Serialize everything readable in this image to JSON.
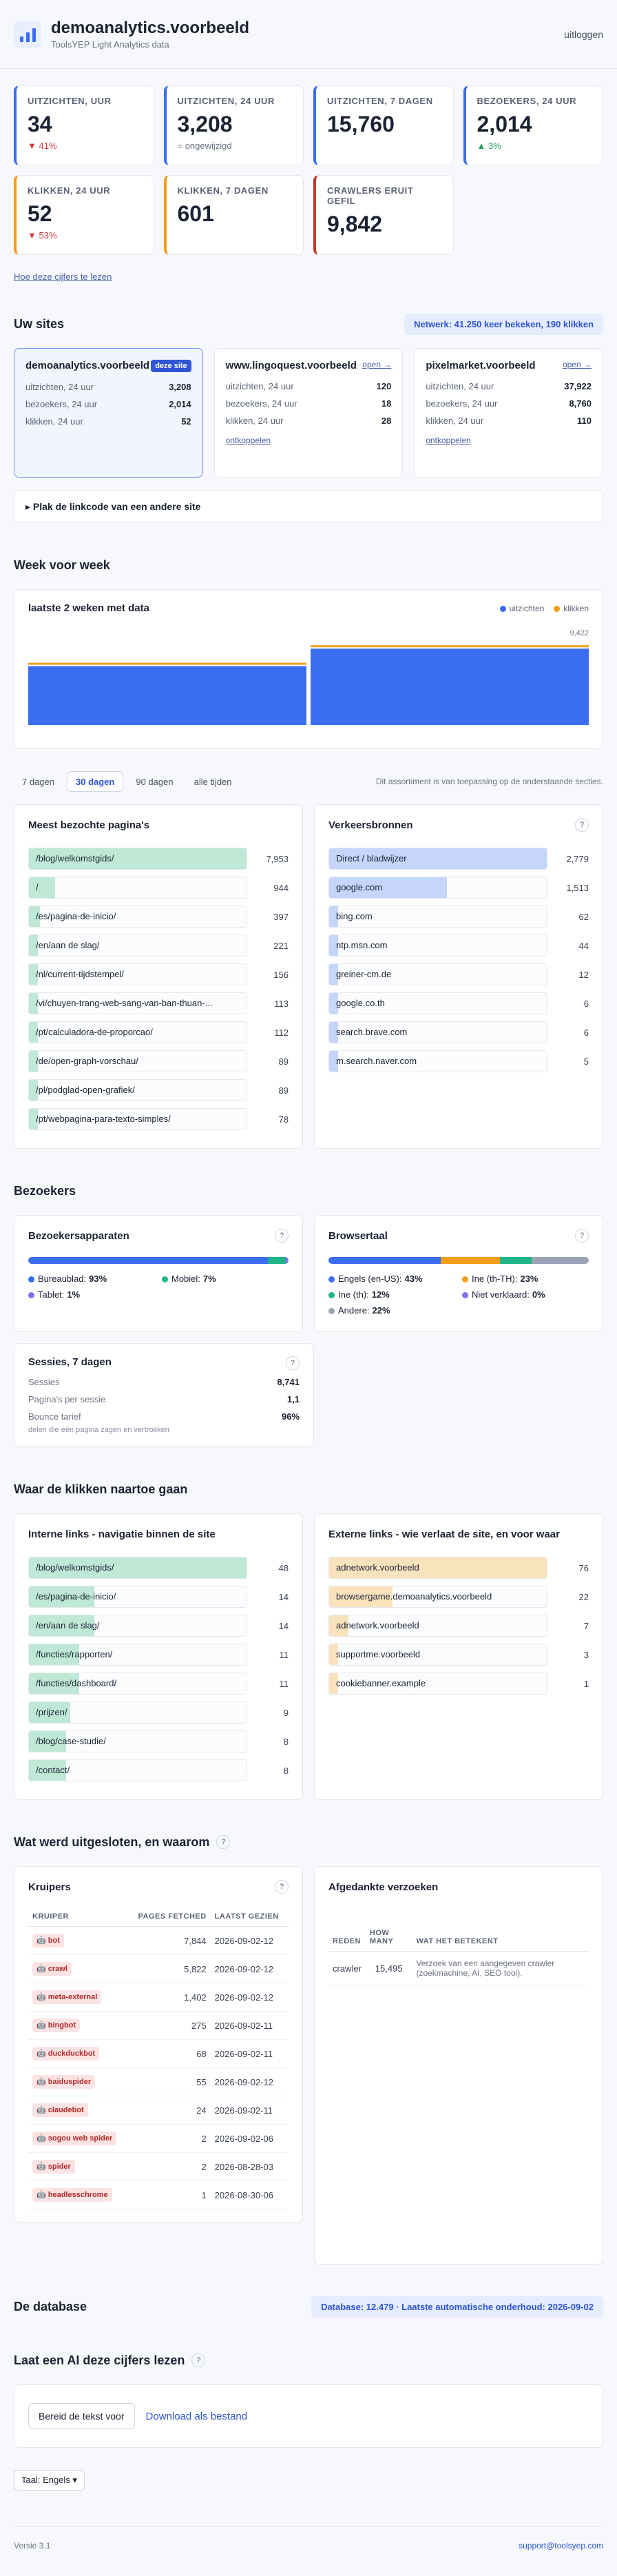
{
  "header": {
    "title": "demoanalytics.voorbeeld",
    "subtitle": "ToolsYEP Light Analytics data",
    "logout": "uitloggen"
  },
  "kpis": [
    {
      "label": "Uitzichten, uur",
      "value": "34",
      "delta": "▼ 41%",
      "trend": "down",
      "accent": "#3b6df0"
    },
    {
      "label": "Uitzichten, 24 uur",
      "value": "3,208",
      "delta": "= ongewijzigd",
      "trend": "flat",
      "accent": "#3b6df0"
    },
    {
      "label": "Uitzichten, 7 dagen",
      "value": "15,760",
      "delta": "",
      "trend": "none",
      "accent": "#3b6df0"
    },
    {
      "label": "Bezoekers, 24 uur",
      "value": "2,014",
      "delta": "▲ 3%",
      "trend": "up",
      "accent": "#3b6df0"
    },
    {
      "label": "Klikken, 24 uur",
      "value": "52",
      "delta": "▼ 53%",
      "trend": "down",
      "accent": "#f59e1b"
    },
    {
      "label": "Klikken, 7 dagen",
      "value": "601",
      "delta": "",
      "trend": "none",
      "accent": "#f59e1b"
    },
    {
      "label": "Crawlers eruit gefil",
      "value": "9,842",
      "delta": "",
      "trend": "none",
      "accent": "#c0392b"
    }
  ],
  "kpi_link": "Hoe deze cijfers te lezen",
  "sites_section": {
    "title": "Uw sites",
    "network": "Netwerk: 41.250 keer bekeken, 190 klikken"
  },
  "sites": [
    {
      "name": "demoanalytics.voorbeeld",
      "badge": "deze site",
      "rows": [
        [
          "uitzichten, 24 uur",
          "3,208"
        ],
        [
          "bezoekers, 24 uur",
          "2,014"
        ],
        [
          "klikken, 24 uur",
          "52"
        ]
      ]
    },
    {
      "name": "www.lingoquest.voorbeeld",
      "open": "open →",
      "rows": [
        [
          "uitzichten, 24 uur",
          "120"
        ],
        [
          "bezoekers, 24 uur",
          "18"
        ],
        [
          "klikken, 24 uur",
          "28"
        ]
      ],
      "unlink": "ontkoppelen"
    },
    {
      "name": "pixelmarket.voorbeeld",
      "open": "open →",
      "rows": [
        [
          "uitzichten, 24 uur",
          "37,922"
        ],
        [
          "bezoekers, 24 uur",
          "8,760"
        ],
        [
          "klikken, 24 uur",
          "110"
        ]
      ],
      "unlink": "ontkoppelen"
    }
  ],
  "paste_code": "▸ Plak de linkcode van een andere site",
  "week": {
    "title": "Week voor week"
  },
  "chart_data": {
    "type": "bar",
    "title": "laatste 2 weken met data",
    "categories": [
      "",
      ""
    ],
    "series": [
      {
        "name": "uitzichten",
        "values": [
          6700,
          8700
        ]
      },
      {
        "name": "klikken",
        "values": [
          280,
          320
        ]
      }
    ],
    "ymax_label": "9,422",
    "ylim": [
      0,
      9422
    ],
    "colors": {
      "uitzichten": "#3b6df0",
      "klikken": "#f59e1b"
    }
  },
  "range_tabs": [
    "7 dagen",
    "30 dagen",
    "90 dagen",
    "alle tijden"
  ],
  "range_note": "Dit assortiment is van toepassing op de onderstaande secties.",
  "pages": {
    "title": "Meest bezochte pagina's",
    "items": [
      [
        "/blog/welkomstgids/",
        "7,953"
      ],
      [
        "/",
        "944"
      ],
      [
        "/es/pagina-de-inicio/",
        "397"
      ],
      [
        "/en/aan de slag/",
        "221"
      ],
      [
        "/nl/current-tijdstempel/",
        "156"
      ],
      [
        "/vi/chuyen-trang-web-sang-van-ban-thuan-...",
        "113"
      ],
      [
        "/pt/calculadora-de-proporcao/",
        "112"
      ],
      [
        "/de/open-graph-vorschau/",
        "89"
      ],
      [
        "/pl/podglad-open-grafiek/",
        "89"
      ],
      [
        "/pt/webpagina-para-texto-simples/",
        "78"
      ]
    ],
    "fractions": [
      1,
      0.12,
      0.05,
      0.03,
      0.02,
      0.015,
      0.014,
      0.011,
      0.011,
      0.01
    ]
  },
  "sources": {
    "title": "Verkeersbronnen",
    "items": [
      [
        "Direct / bladwijzer",
        "2,779"
      ],
      [
        "google.com",
        "1,513"
      ],
      [
        "bing.com",
        "62"
      ],
      [
        "ntp.msn.com",
        "44"
      ],
      [
        "greiner-cm.de",
        "12"
      ],
      [
        "google.co.th",
        "6"
      ],
      [
        "search.brave.com",
        "6"
      ],
      [
        "m.search.naver.com",
        "5"
      ]
    ],
    "fractions": [
      1,
      0.54,
      0.02,
      0.016,
      0.004,
      0.002,
      0.002,
      0.002
    ]
  },
  "visitors": {
    "title": "Bezoekers"
  },
  "devices": {
    "title": "Bezoekersapparaten",
    "items": [
      {
        "label": "Bureaublad:",
        "pct": "93%",
        "value": 93,
        "color": "#3b6df0"
      },
      {
        "label": "Mobiel:",
        "pct": "7%",
        "value": 7,
        "color": "#1fb589"
      },
      {
        "label": "Tablet:",
        "pct": "1%",
        "value": 1,
        "color": "#8b6cf0"
      }
    ]
  },
  "langs": {
    "title": "Browsertaal",
    "items": [
      {
        "label": "Engels (en-US):",
        "pct": "43%",
        "value": 43,
        "color": "#3b6df0"
      },
      {
        "label": "Ine (th-TH):",
        "pct": "23%",
        "value": 23,
        "color": "#f59e1b"
      },
      {
        "label": "Ine (th):",
        "pct": "12%",
        "value": 12,
        "color": "#1fb589"
      },
      {
        "label": "Niet verklaard:",
        "pct": "0%",
        "value": 0,
        "color": "#8b6cf0"
      },
      {
        "label": "Andere:",
        "pct": "22%",
        "value": 22,
        "color": "#9aa3b5"
      }
    ]
  },
  "sessions": {
    "title": "Sessies, 7 dagen",
    "rows": [
      [
        "Sessies",
        "8,741"
      ],
      [
        "Pagina's per sessie",
        "1,1"
      ],
      [
        "Bounce tarief",
        "96%"
      ]
    ],
    "hint": "delen die één pagina zagen en vertrokken"
  },
  "clicks": {
    "title": "Waar de klikken naartoe gaan"
  },
  "internal": {
    "title": "Interne links - navigatie binnen de site",
    "items": [
      [
        "/blog/welkomstgids/",
        "48"
      ],
      [
        "/es/pagina-de-inicio/",
        "14"
      ],
      [
        "/en/aan de slag/",
        "14"
      ],
      [
        "/functies/rapporten/",
        "11"
      ],
      [
        "/functies/dashboard/",
        "11"
      ],
      [
        "/prijzen/",
        "9"
      ],
      [
        "/blog/case-studie/",
        "8"
      ],
      [
        "/contact/",
        "8"
      ]
    ],
    "fractions": [
      1,
      0.3,
      0.3,
      0.23,
      0.23,
      0.19,
      0.17,
      0.17
    ]
  },
  "external": {
    "title": "Externe links - wie verlaat de site, en voor waar",
    "items": [
      [
        "adnetwork.voorbeeld",
        "76"
      ],
      [
        "browsergame.demoanalytics.voorbeeld",
        "22"
      ],
      [
        "adnetwork.voorbeeld",
        "7"
      ],
      [
        "supportme.voorbeeld",
        "3"
      ],
      [
        "cookiebanner.example",
        "1"
      ]
    ],
    "fractions": [
      1,
      0.29,
      0.09,
      0.04,
      0.01
    ]
  },
  "excluded": {
    "title": "Wat werd uitgesloten, en waarom"
  },
  "crawlers": {
    "title": "Kruipers",
    "cols": [
      "KRUIPER",
      "PAGES FETCHED",
      "LAATST GEZIEN"
    ],
    "rows": [
      [
        "🤖 bot",
        "7,844",
        "2026-09-02-12"
      ],
      [
        "🤖 crawl",
        "5,822",
        "2026-09-02-12"
      ],
      [
        "🤖 meta-external",
        "1,402",
        "2026-09-02-12"
      ],
      [
        "🤖 bingbot",
        "275",
        "2026-09-02-11"
      ],
      [
        "🤖 duckduckbot",
        "68",
        "2026-09-02-11"
      ],
      [
        "🤖 baiduspider",
        "55",
        "2026-09-02-12"
      ],
      [
        "🤖 claudebot",
        "24",
        "2026-09-02-11"
      ],
      [
        "🤖 sogou web spider",
        "2",
        "2026-09-02-06"
      ],
      [
        "🤖 spider",
        "2",
        "2026-08-28-03"
      ],
      [
        "🤖 headlesschrome",
        "1",
        "2026-08-30-06"
      ]
    ]
  },
  "rejected": {
    "title": "Afgedankte verzoeken",
    "cols": [
      "REDEN",
      "HOW MANY",
      "WAT HET BETEKENT"
    ],
    "rows": [
      [
        "crawler",
        "15,495",
        "Verzoek van een aangegeven crawler (zoekmachine, AI, SEO tool)."
      ]
    ]
  },
  "database": {
    "title": "De database",
    "info": "Database: 12.479 · Laatste automatische onderhoud: 2026-09-02"
  },
  "ai": {
    "title": "Laat een AI deze cijfers lezen",
    "prepare": "Bereid de tekst voor",
    "download": "Download als bestand"
  },
  "language_select": "Taal: Engels ▾",
  "footer": {
    "version": "Versie 3.1",
    "email": "support@toolsyep.com"
  }
}
